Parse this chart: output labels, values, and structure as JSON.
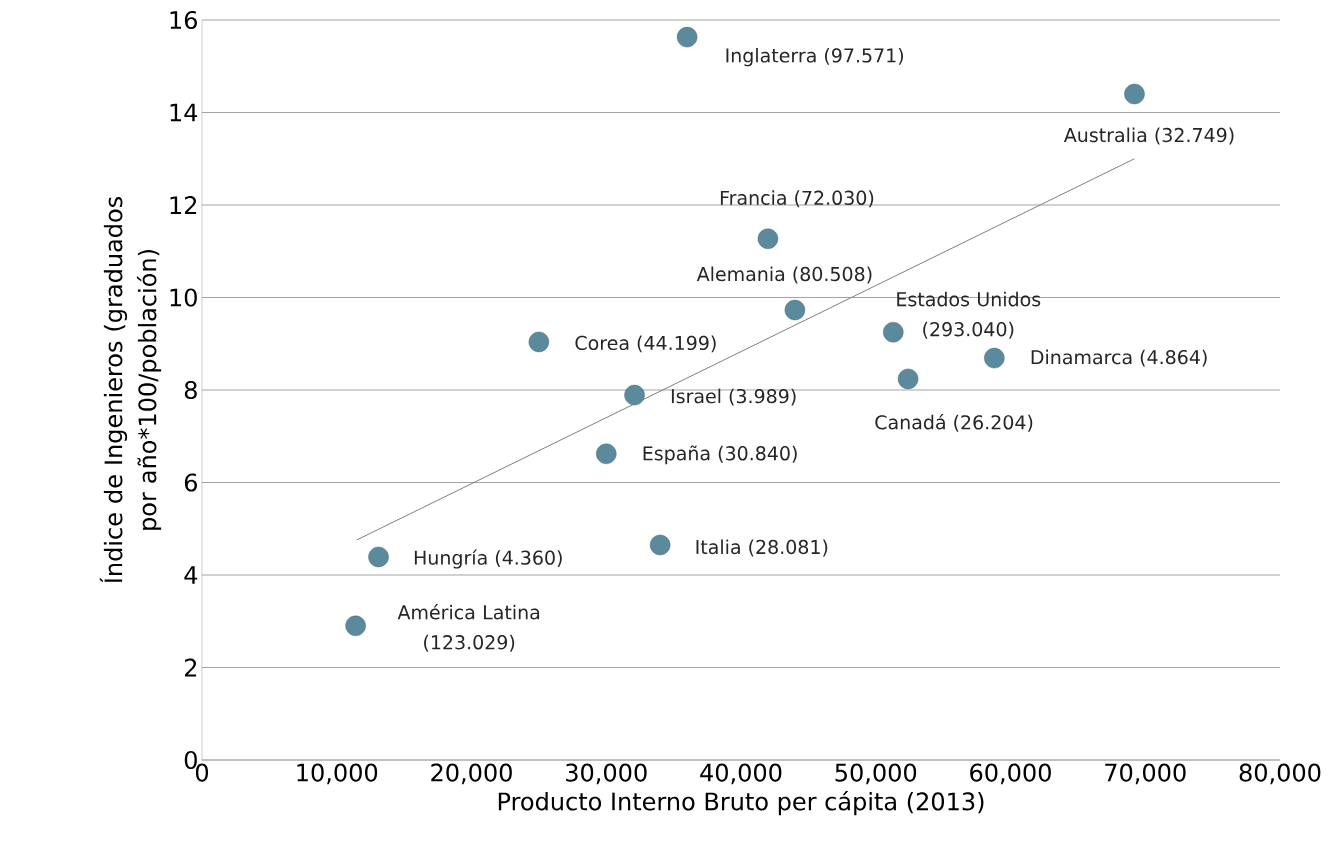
{
  "chart_data": {
    "type": "scatter",
    "xlabel": "Producto Interno Bruto per cápita (2013)",
    "ylabel": "Índice de Ingenieros (graduados por año*100/población)",
    "xlim": [
      0,
      80000
    ],
    "ylim": [
      0,
      16
    ],
    "xticks": [
      0,
      {
        "value": 10000,
        "label": "10,000"
      },
      {
        "value": 20000,
        "label": "20,000"
      },
      {
        "value": 30000,
        "label": "30,000"
      },
      {
        "value": 40000,
        "label": "40,000"
      },
      {
        "value": 50000,
        "label": "50,000"
      },
      {
        "value": 60000,
        "label": "60,000"
      },
      {
        "value": 70000,
        "label": "70,000"
      },
      {
        "value": 80000,
        "label": "80,000"
      }
    ],
    "yticks": [
      0,
      2,
      4,
      6,
      8,
      10,
      12,
      14,
      16
    ],
    "grid": "y",
    "series": [
      {
        "color": "#5b8a9c",
        "marker": "circle",
        "x": [
          36000,
          69200,
          42000,
          44000,
          51300,
          58800,
          52400,
          25000,
          32100,
          30000,
          34000,
          13100,
          11400
        ],
        "values": [
          15.63,
          14.4,
          11.27,
          9.73,
          9.25,
          8.69,
          8.24,
          9.04,
          7.89,
          6.62,
          4.65,
          4.39,
          2.9
        ]
      },
      {
        "type": "line",
        "color": "#7f7f7f",
        "x": [
          11500,
          69200
        ],
        "values": [
          4.76,
          13.0
        ]
      }
    ],
    "annotations": [
      {
        "text": "Inglaterra (97.571)",
        "x": 36000,
        "y": 15.63
      },
      {
        "text": "Australia (32.749)",
        "x": 69200,
        "y": 14.4
      },
      {
        "text": "Francia (72.030)",
        "x": 42000,
        "y": 11.27
      },
      {
        "text": "Alemania (80.508)",
        "x": 44000,
        "y": 9.73
      },
      {
        "text": "Estados Unidos (293.040)",
        "x": 51300,
        "y": 9.25
      },
      {
        "text": "Dinamarca (4.864)",
        "x": 58800,
        "y": 8.69
      },
      {
        "text": "Canadá (26.204)",
        "x": 52400,
        "y": 8.24
      },
      {
        "text": "Corea (44.199)",
        "x": 25000,
        "y": 9.04
      },
      {
        "text": "Israel (3.989)",
        "x": 32100,
        "y": 7.89
      },
      {
        "text": "España (30.840)",
        "x": 30000,
        "y": 6.62
      },
      {
        "text": "Italia (28.081)",
        "x": 34000,
        "y": 4.65
      },
      {
        "text": "Hungría (4.360)",
        "x": 13100,
        "y": 4.39
      },
      {
        "text": "América Latina (123.029)",
        "x": 11400,
        "y": 2.9
      }
    ]
  }
}
